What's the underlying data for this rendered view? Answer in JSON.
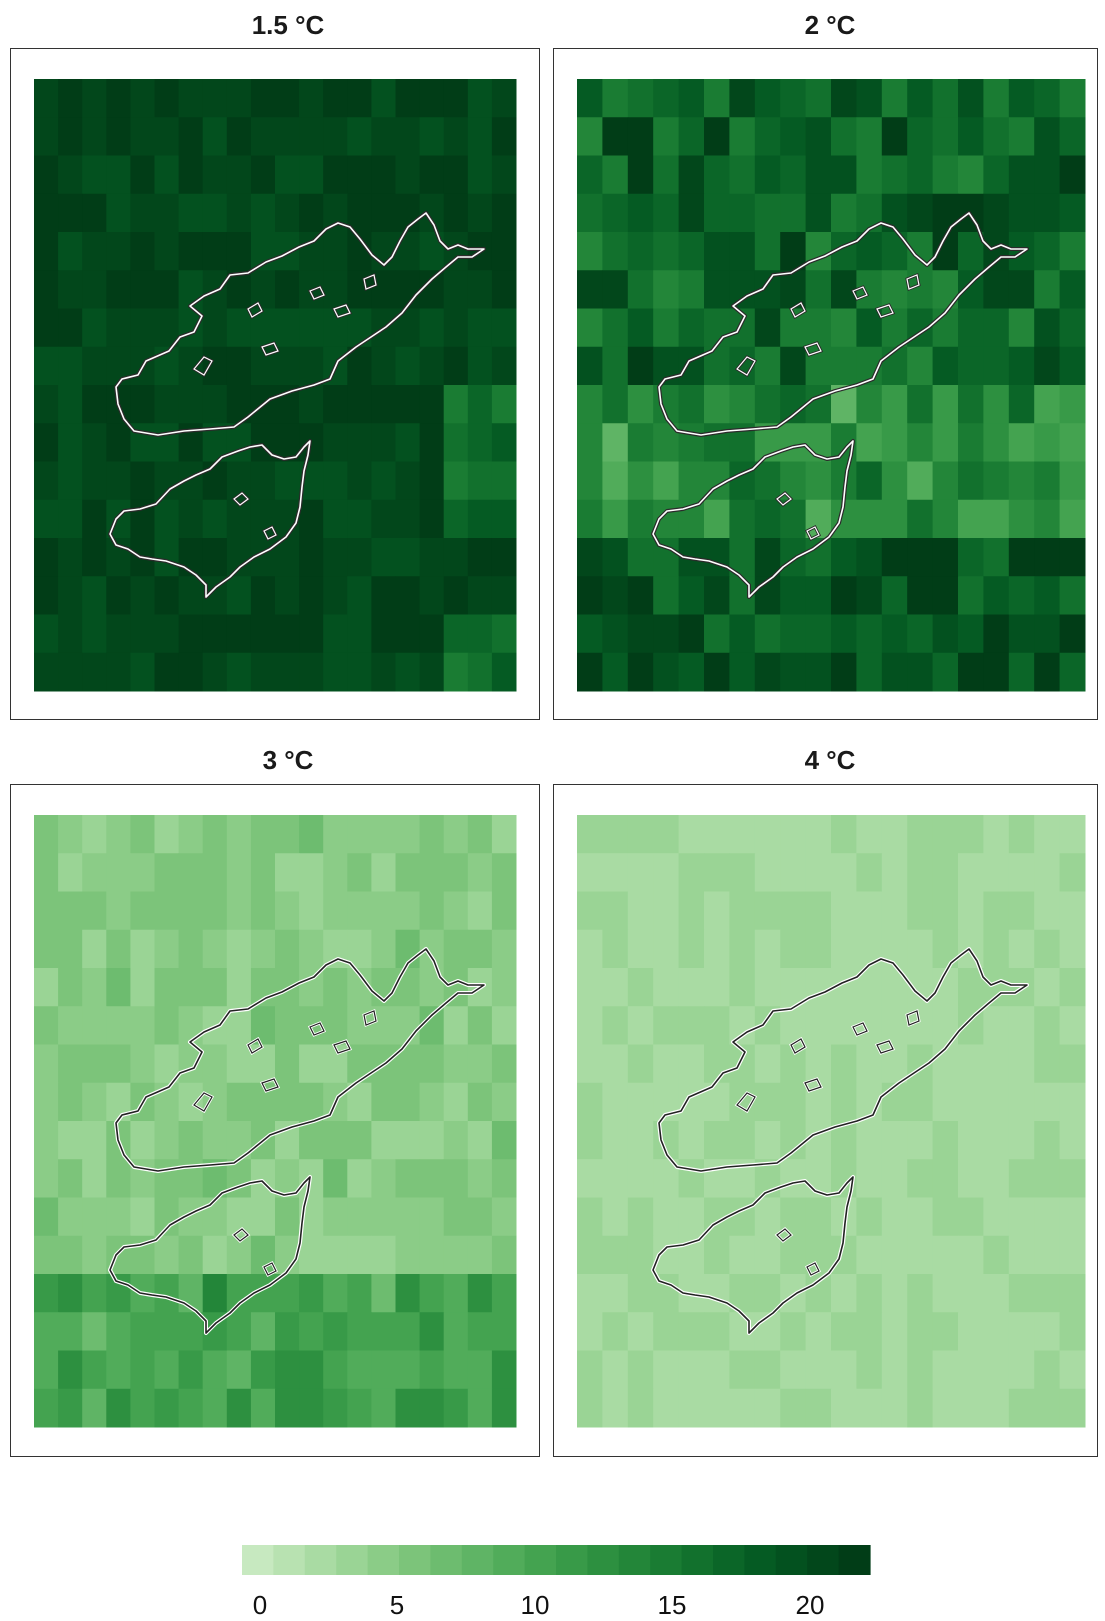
{
  "panels": [
    {
      "title": "1.5 °C",
      "outline_color": "#ffffff",
      "base": 20.5,
      "var": 1.4,
      "seed": 3
    },
    {
      "title": "2 °C",
      "outline_color": "#ffffff",
      "base": 17.5,
      "var": 4.0,
      "seed": 7
    },
    {
      "title": "3 °C",
      "outline_color": "#222222",
      "base": 4.5,
      "var": 1.6,
      "seed": 11
    },
    {
      "title": "4 °C",
      "outline_color": "#222222",
      "base": 2.3,
      "var": 0.9,
      "seed": 19
    }
  ],
  "colorbar": {
    "min": -1,
    "max": 22,
    "colors": [
      "#c7e9c0",
      "#b8e2b1",
      "#a9dba3",
      "#9ad495",
      "#8bcc87",
      "#7cc47a",
      "#6dbc6f",
      "#5fb465",
      "#51ac5a",
      "#44a350",
      "#389a48",
      "#2d9040",
      "#238639",
      "#1a7c33",
      "#12712d",
      "#0b6628",
      "#055b23",
      "#03511f",
      "#02471b",
      "#013d17"
    ],
    "ticks": [
      "0",
      "5",
      "10",
      "15",
      "20"
    ],
    "tick_values": [
      0,
      5,
      10,
      15,
      20
    ]
  }
}
